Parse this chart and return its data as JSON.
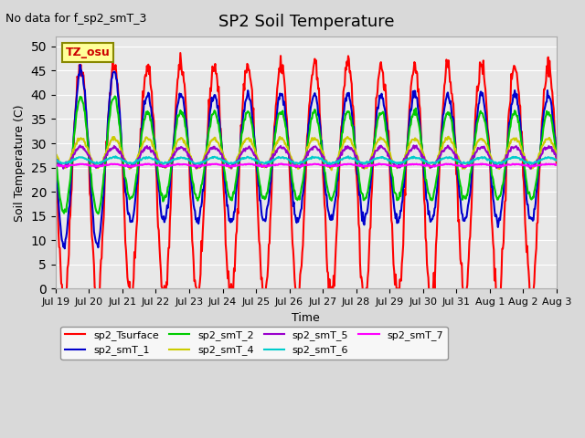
{
  "title": "SP2 Soil Temperature",
  "subtitle": "No data for f_sp2_smT_3",
  "xlabel": "Time",
  "ylabel": "Soil Temperature (C)",
  "ylim": [
    0,
    52
  ],
  "yticks": [
    0,
    5,
    10,
    15,
    20,
    25,
    30,
    35,
    40,
    45,
    50
  ],
  "tz_label": "TZ_osu",
  "background_color": "#d9d9d9",
  "plot_bg_color": "#e8e8e8",
  "series": {
    "sp2_Tsurface": {
      "color": "#ff0000",
      "lw": 1.5
    },
    "sp2_smT_1": {
      "color": "#0000cc",
      "lw": 1.5
    },
    "sp2_smT_2": {
      "color": "#00cc00",
      "lw": 1.5
    },
    "sp2_smT_4": {
      "color": "#cccc00",
      "lw": 1.5
    },
    "sp2_smT_5": {
      "color": "#9900cc",
      "lw": 1.5
    },
    "sp2_smT_6": {
      "color": "#00cccc",
      "lw": 1.5
    },
    "sp2_smT_7": {
      "color": "#ff00ff",
      "lw": 1.5
    }
  },
  "x_tick_labels": [
    "Jul 19",
    "Jul 20",
    "Jul 21",
    "Jul 22",
    "Jul 23",
    "Jul 24",
    "Jul 25",
    "Jul 26",
    "Jul 27",
    "Jul 28",
    "Jul 29",
    "Jul 30",
    "Jul 31",
    "Aug 1",
    "Aug 2",
    "Aug 3"
  ],
  "num_days": 15,
  "pts_per_day": 48
}
